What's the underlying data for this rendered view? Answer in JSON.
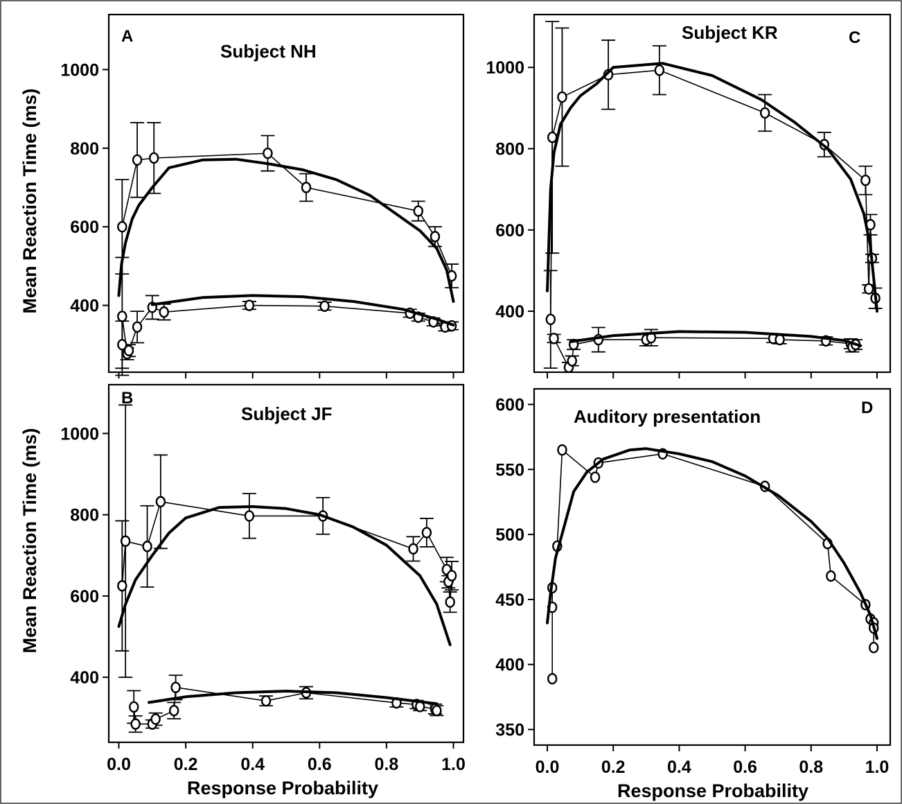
{
  "chart_data": [
    {
      "id": "A",
      "type": "line",
      "panel_letter": "A",
      "title": "Subject NH",
      "ylabel": "Mean Reaction Time (ms)",
      "xlabel": "",
      "xlim": [
        -0.03,
        1.03
      ],
      "ylim": [
        230,
        1140
      ],
      "yticks": [
        400,
        600,
        800,
        1000
      ],
      "xticks": [
        0.0,
        0.2,
        0.4,
        0.6,
        0.8,
        1.0
      ],
      "x_tick_labels_shown": false,
      "series": [
        {
          "role": "observed",
          "points": [
            {
              "x": 0.01,
              "y": 600,
              "err": 120
            },
            {
              "x": 0.055,
              "y": 770,
              "err": 95
            },
            {
              "x": 0.105,
              "y": 775,
              "err": 90
            },
            {
              "x": 0.445,
              "y": 787,
              "err": 45
            },
            {
              "x": 0.56,
              "y": 700,
              "err": 35
            },
            {
              "x": 0.895,
              "y": 640,
              "err": 25
            },
            {
              "x": 0.945,
              "y": 575,
              "err": 25
            },
            {
              "x": 0.995,
              "y": 475,
              "err": 30
            }
          ]
        },
        {
          "role": "observed",
          "points": [
            {
              "x": 0.01,
              "y": 300,
              "err": 60
            },
            {
              "x": 0.01,
              "y": 372,
              "err": 150
            },
            {
              "x": 0.025,
              "y": 277,
              "err": 15
            },
            {
              "x": 0.03,
              "y": 285,
              "err": 15
            },
            {
              "x": 0.055,
              "y": 345,
              "err": 40
            },
            {
              "x": 0.1,
              "y": 395,
              "err": 30
            },
            {
              "x": 0.135,
              "y": 383,
              "err": 20
            },
            {
              "x": 0.39,
              "y": 400,
              "err": 10
            },
            {
              "x": 0.615,
              "y": 398,
              "err": 10
            },
            {
              "x": 0.87,
              "y": 380,
              "err": 10
            },
            {
              "x": 0.895,
              "y": 370,
              "err": 10
            },
            {
              "x": 0.94,
              "y": 358,
              "err": 10
            },
            {
              "x": 0.975,
              "y": 345,
              "err": 10
            },
            {
              "x": 0.995,
              "y": 348,
              "err": 10
            }
          ]
        },
        {
          "role": "fit",
          "points": [
            [
              0.0,
              425
            ],
            [
              0.008,
              505
            ],
            [
              0.02,
              560
            ],
            [
              0.04,
              620
            ],
            [
              0.06,
              655
            ],
            [
              0.1,
              700
            ],
            [
              0.15,
              750
            ],
            [
              0.25,
              770
            ],
            [
              0.35,
              772
            ],
            [
              0.45,
              760
            ],
            [
              0.55,
              745
            ],
            [
              0.65,
              720
            ],
            [
              0.75,
              680
            ],
            [
              0.85,
              620
            ],
            [
              0.9,
              590
            ],
            [
              0.95,
              545
            ],
            [
              0.98,
              490
            ],
            [
              1.0,
              410
            ]
          ]
        },
        {
          "role": "fit",
          "points": [
            [
              0.1,
              402
            ],
            [
              0.25,
              420
            ],
            [
              0.4,
              425
            ],
            [
              0.55,
              422
            ],
            [
              0.7,
              410
            ],
            [
              0.85,
              390
            ],
            [
              0.95,
              365
            ],
            [
              1.0,
              350
            ]
          ]
        }
      ]
    },
    {
      "id": "C",
      "type": "line",
      "panel_letter": "C",
      "title": "Subject KR",
      "ylabel": "",
      "xlabel": "",
      "xlim": [
        -0.04,
        1.04
      ],
      "ylim": [
        250,
        1130
      ],
      "yticks": [
        400,
        600,
        800,
        1000
      ],
      "xticks": [
        0.0,
        0.2,
        0.4,
        0.6,
        0.8,
        1.0
      ],
      "x_tick_labels_shown": false,
      "series": [
        {
          "role": "observed",
          "points": [
            {
              "x": 0.01,
              "y": 380,
              "err": 120
            },
            {
              "x": 0.015,
              "y": 828,
              "err": 285
            },
            {
              "x": 0.045,
              "y": 927,
              "err": 170
            },
            {
              "x": 0.185,
              "y": 982,
              "err": 85
            },
            {
              "x": 0.34,
              "y": 993,
              "err": 60
            },
            {
              "x": 0.66,
              "y": 888,
              "err": 45
            },
            {
              "x": 0.84,
              "y": 810,
              "err": 30
            },
            {
              "x": 0.965,
              "y": 722,
              "err": 35
            },
            {
              "x": 0.98,
              "y": 613,
              "err": 25
            },
            {
              "x": 0.985,
              "y": 530,
              "err": 10
            },
            {
              "x": 0.975,
              "y": 455,
              "err": 10
            },
            {
              "x": 0.995,
              "y": 432,
              "err": 25
            }
          ]
        },
        {
          "role": "observed",
          "points": [
            {
              "x": 0.02,
              "y": 333,
              "err": 10
            },
            {
              "x": 0.065,
              "y": 262,
              "err": 12
            },
            {
              "x": 0.075,
              "y": 278,
              "err": 12
            },
            {
              "x": 0.08,
              "y": 318,
              "err": 12
            },
            {
              "x": 0.155,
              "y": 330,
              "err": 30
            },
            {
              "x": 0.3,
              "y": 330,
              "err": 15
            },
            {
              "x": 0.315,
              "y": 335,
              "err": 20
            },
            {
              "x": 0.685,
              "y": 333,
              "err": 10
            },
            {
              "x": 0.705,
              "y": 330,
              "err": 10
            },
            {
              "x": 0.845,
              "y": 327,
              "err": 10
            },
            {
              "x": 0.92,
              "y": 320,
              "err": 12
            },
            {
              "x": 0.925,
              "y": 312,
              "err": 12
            },
            {
              "x": 0.935,
              "y": 318,
              "err": 12
            }
          ]
        },
        {
          "role": "fit",
          "points": [
            [
              0.0,
              450
            ],
            [
              0.01,
              700
            ],
            [
              0.02,
              790
            ],
            [
              0.04,
              860
            ],
            [
              0.07,
              900
            ],
            [
              0.1,
              930
            ],
            [
              0.15,
              960
            ],
            [
              0.2,
              1000
            ],
            [
              0.35,
              1010
            ],
            [
              0.5,
              980
            ],
            [
              0.65,
              920
            ],
            [
              0.75,
              865
            ],
            [
              0.85,
              800
            ],
            [
              0.92,
              725
            ],
            [
              0.96,
              640
            ],
            [
              0.98,
              560
            ],
            [
              1.0,
              400
            ]
          ]
        },
        {
          "role": "fit",
          "points": [
            [
              0.07,
              325
            ],
            [
              0.2,
              340
            ],
            [
              0.4,
              350
            ],
            [
              0.6,
              348
            ],
            [
              0.8,
              338
            ],
            [
              0.9,
              328
            ],
            [
              0.95,
              315
            ]
          ]
        }
      ]
    },
    {
      "id": "B",
      "type": "line",
      "panel_letter": "B",
      "title": "Subject JF",
      "ylabel": "Mean Reaction Time (ms)",
      "xlabel": "Response Probability",
      "xlim": [
        -0.03,
        1.03
      ],
      "ylim": [
        240,
        1120
      ],
      "yticks": [
        400,
        600,
        800,
        1000
      ],
      "xticks": [
        0.0,
        0.2,
        0.4,
        0.6,
        0.8,
        1.0
      ],
      "xticklabels": [
        "0.0",
        "0.2",
        "0.4",
        "0.6",
        "0.8",
        "1.0"
      ],
      "x_tick_labels_shown": true,
      "series": [
        {
          "role": "observed",
          "points": [
            {
              "x": 0.01,
              "y": 625,
              "err": 160
            },
            {
              "x": 0.02,
              "y": 735,
              "err": 335
            },
            {
              "x": 0.085,
              "y": 722,
              "err": 100
            },
            {
              "x": 0.125,
              "y": 832,
              "err": 115
            },
            {
              "x": 0.39,
              "y": 797,
              "err": 55
            },
            {
              "x": 0.61,
              "y": 797,
              "err": 45
            },
            {
              "x": 0.88,
              "y": 716,
              "err": 30
            },
            {
              "x": 0.92,
              "y": 756,
              "err": 35
            },
            {
              "x": 0.98,
              "y": 665,
              "err": 30
            },
            {
              "x": 0.985,
              "y": 635,
              "err": 15
            },
            {
              "x": 0.995,
              "y": 650,
              "err": 35
            },
            {
              "x": 0.99,
              "y": 585,
              "err": 25
            }
          ]
        },
        {
          "role": "observed",
          "points": [
            {
              "x": 0.045,
              "y": 327,
              "err": 40
            },
            {
              "x": 0.05,
              "y": 285,
              "err": 20
            },
            {
              "x": 0.1,
              "y": 285,
              "err": 10
            },
            {
              "x": 0.11,
              "y": 297,
              "err": 15
            },
            {
              "x": 0.165,
              "y": 318,
              "err": 20
            },
            {
              "x": 0.17,
              "y": 375,
              "err": 30
            },
            {
              "x": 0.44,
              "y": 342,
              "err": 12
            },
            {
              "x": 0.56,
              "y": 362,
              "err": 15
            },
            {
              "x": 0.83,
              "y": 337,
              "err": 10
            },
            {
              "x": 0.89,
              "y": 333,
              "err": 10
            },
            {
              "x": 0.9,
              "y": 328,
              "err": 10
            },
            {
              "x": 0.945,
              "y": 322,
              "err": 12
            },
            {
              "x": 0.95,
              "y": 318,
              "err": 12
            }
          ]
        },
        {
          "role": "fit",
          "points": [
            [
              0.0,
              525
            ],
            [
              0.02,
              580
            ],
            [
              0.05,
              640
            ],
            [
              0.1,
              700
            ],
            [
              0.15,
              755
            ],
            [
              0.2,
              792
            ],
            [
              0.3,
              818
            ],
            [
              0.4,
              820
            ],
            [
              0.5,
              815
            ],
            [
              0.6,
              800
            ],
            [
              0.7,
              770
            ],
            [
              0.8,
              725
            ],
            [
              0.9,
              650
            ],
            [
              0.95,
              580
            ],
            [
              0.99,
              480
            ]
          ]
        },
        {
          "role": "fit",
          "points": [
            [
              0.09,
              338
            ],
            [
              0.2,
              352
            ],
            [
              0.35,
              362
            ],
            [
              0.5,
              366
            ],
            [
              0.65,
              362
            ],
            [
              0.8,
              350
            ],
            [
              0.95,
              335
            ]
          ]
        }
      ]
    },
    {
      "id": "D",
      "type": "line",
      "panel_letter": "D",
      "title": "Auditory presentation",
      "ylabel": "",
      "xlabel": "Response Probability",
      "xlim": [
        -0.04,
        1.04
      ],
      "ylim": [
        338,
        612
      ],
      "yticks": [
        350,
        400,
        450,
        500,
        550,
        600
      ],
      "xticks": [
        0.0,
        0.2,
        0.4,
        0.6,
        0.8,
        1.0
      ],
      "xticklabels": [
        "0.0",
        "0.2",
        "0.4",
        "0.6",
        "0.8",
        "1.0"
      ],
      "x_tick_labels_shown": true,
      "series": [
        {
          "role": "observed",
          "points": [
            {
              "x": 0.015,
              "y": 389
            },
            {
              "x": 0.015,
              "y": 444
            },
            {
              "x": 0.015,
              "y": 459
            },
            {
              "x": 0.03,
              "y": 491
            },
            {
              "x": 0.045,
              "y": 565
            },
            {
              "x": 0.145,
              "y": 544
            },
            {
              "x": 0.155,
              "y": 555
            },
            {
              "x": 0.35,
              "y": 562
            },
            {
              "x": 0.66,
              "y": 537
            },
            {
              "x": 0.86,
              "y": 468
            },
            {
              "x": 0.85,
              "y": 493
            },
            {
              "x": 0.965,
              "y": 446
            },
            {
              "x": 0.98,
              "y": 435
            },
            {
              "x": 0.99,
              "y": 432
            },
            {
              "x": 0.99,
              "y": 428
            },
            {
              "x": 0.99,
              "y": 413
            }
          ]
        },
        {
          "role": "fit",
          "points": [
            [
              0.0,
              432
            ],
            [
              0.01,
              455
            ],
            [
              0.025,
              482
            ],
            [
              0.05,
              505
            ],
            [
              0.08,
              533
            ],
            [
              0.12,
              548
            ],
            [
              0.17,
              558
            ],
            [
              0.25,
              565
            ],
            [
              0.3,
              566
            ],
            [
              0.4,
              562
            ],
            [
              0.5,
              556
            ],
            [
              0.6,
              545
            ],
            [
              0.7,
              530
            ],
            [
              0.8,
              510
            ],
            [
              0.85,
              497
            ],
            [
              0.9,
              478
            ],
            [
              0.95,
              455
            ],
            [
              0.98,
              438
            ],
            [
              1.0,
              420
            ]
          ]
        }
      ]
    }
  ]
}
